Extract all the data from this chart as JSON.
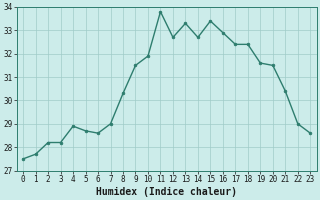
{
  "x": [
    0,
    1,
    2,
    3,
    4,
    5,
    6,
    7,
    8,
    9,
    10,
    11,
    12,
    13,
    14,
    15,
    16,
    17,
    18,
    19,
    20,
    21,
    22,
    23
  ],
  "y": [
    27.5,
    27.7,
    28.2,
    28.2,
    28.9,
    28.7,
    28.6,
    29.0,
    30.3,
    31.5,
    31.9,
    33.8,
    32.7,
    33.3,
    32.7,
    33.4,
    32.9,
    32.4,
    32.4,
    31.6,
    31.5,
    30.4,
    29.0,
    28.6
  ],
  "line_color": "#2e7d6e",
  "marker": "o",
  "marker_size": 2,
  "line_width": 1.0,
  "bg_color": "#ccecea",
  "grid_color": "#a0ccc8",
  "xlabel": "Humidex (Indice chaleur)",
  "xlabel_fontsize": 7,
  "tick_fontsize": 5.5,
  "ylim": [
    27,
    34
  ],
  "xlim": [
    -0.5,
    23.5
  ],
  "yticks": [
    27,
    28,
    29,
    30,
    31,
    32,
    33,
    34
  ],
  "xticks": [
    0,
    1,
    2,
    3,
    4,
    5,
    6,
    7,
    8,
    9,
    10,
    11,
    12,
    13,
    14,
    15,
    16,
    17,
    18,
    19,
    20,
    21,
    22,
    23
  ]
}
